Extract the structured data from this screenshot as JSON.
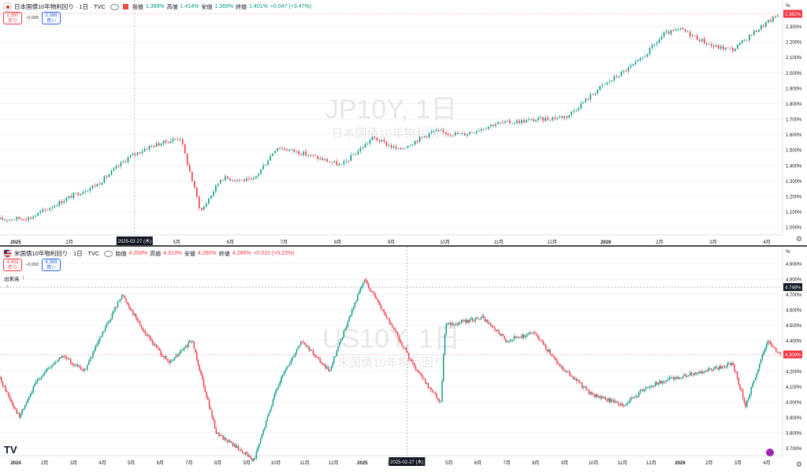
{
  "colors": {
    "up": "#089981",
    "down": "#f23645",
    "crosshair_bg": "#131722",
    "price_tag": "#f23645",
    "watermark": "#131722"
  },
  "top": {
    "symbol_title": "日本国債10年物利回り · 1日 · TVC",
    "ohlc": {
      "o_label": "始値",
      "o": "1.369%",
      "h_label": "高値",
      "h": "1.414%",
      "l_label": "安値",
      "l": "1.369%",
      "c_label": "終値",
      "c": "1.401%",
      "chg": "+0.047 (+3.47%)"
    },
    "sell_price": "2.397",
    "sell_label": "売り",
    "spread": "−0.009",
    "buy_price": "2.388",
    "buy_label": "買い",
    "watermark_title": "JP10Y, 1日",
    "watermark_sub": "日本国債10年物利回り",
    "unit": "%",
    "last_price": "2.382%",
    "crosshair_date": "2025-02-27 (木)",
    "y_ticks": [
      "2.300%",
      "2.200%",
      "2.100%",
      "2.000%",
      "1.900%",
      "1.800%",
      "1.700%",
      "1.600%",
      "1.500%",
      "1.400%",
      "1.300%",
      "1.200%",
      "1.100%",
      "1.000%"
    ],
    "x_ticks": [
      "2025",
      "2月",
      "4月",
      "5月",
      "6月",
      "7月",
      "8月",
      "9月",
      "10月",
      "11月",
      "12月",
      "2026",
      "2月",
      "3月",
      "4月"
    ]
  },
  "bottom": {
    "symbol_title": "米国債10年物利回り · 1日 · TVC",
    "ohlc": {
      "o_label": "始値",
      "o": "4.269%",
      "h_label": "高値",
      "h": "4.313%",
      "l_label": "安値",
      "l": "4.260%",
      "c_label": "終値",
      "c": "4.266%",
      "chg": "+0.010 (+0.23%)"
    },
    "sell_price": "4.401",
    "sell_label": "売り",
    "spread": "−0.002",
    "buy_price": "4.399",
    "buy_label": "買い",
    "volume_label": "出来高",
    "watermark_title": "US10Y, 1日",
    "watermark_sub": "米国債10年物利回り",
    "unit": "%",
    "last_price": "4.309%",
    "crosshair_price": "4.748%",
    "crosshair_date": "2025-02-27 (木)",
    "y_ticks": [
      "4.900%",
      "4.800%",
      "4.700%",
      "4.600%",
      "4.500%",
      "4.400%",
      "4.300%",
      "4.200%",
      "4.100%",
      "4.000%",
      "3.900%",
      "3.800%",
      "3.700%"
    ],
    "x_ticks": [
      "2024",
      "2月",
      "3月",
      "4月",
      "5月",
      "6月",
      "7月",
      "8月",
      "9月",
      "10月",
      "11月",
      "12月",
      "2025",
      "2月",
      "4月",
      "5月",
      "6月",
      "7月",
      "8月",
      "9月",
      "10月",
      "11月",
      "12月",
      "2026",
      "2月",
      "3月",
      "4月"
    ]
  },
  "chart_data": [
    {
      "type": "candlestick",
      "title": "JP10Y, 1日",
      "series_name": "日本国債10年物利回り",
      "ylim": [
        0.95,
        2.42
      ],
      "x_range": [
        "2024-12-01",
        "2026-04-10"
      ],
      "key_points": [
        {
          "date": "2024-12-01",
          "value": 1.05
        },
        {
          "date": "2024-12-20",
          "value": 1.06
        },
        {
          "date": "2025-01-15",
          "value": 1.2
        },
        {
          "date": "2025-02-01",
          "value": 1.28
        },
        {
          "date": "2025-02-20",
          "value": 1.45
        },
        {
          "date": "2025-03-05",
          "value": 1.52
        },
        {
          "date": "2025-03-25",
          "value": 1.58
        },
        {
          "date": "2025-04-07",
          "value": 1.1
        },
        {
          "date": "2025-04-20",
          "value": 1.32
        },
        {
          "date": "2025-05-10",
          "value": 1.3
        },
        {
          "date": "2025-05-25",
          "value": 1.52
        },
        {
          "date": "2025-06-10",
          "value": 1.48
        },
        {
          "date": "2025-07-05",
          "value": 1.4
        },
        {
          "date": "2025-07-25",
          "value": 1.58
        },
        {
          "date": "2025-08-10",
          "value": 1.5
        },
        {
          "date": "2025-09-01",
          "value": 1.62
        },
        {
          "date": "2025-09-20",
          "value": 1.6
        },
        {
          "date": "2025-10-10",
          "value": 1.67
        },
        {
          "date": "2025-11-10",
          "value": 1.7
        },
        {
          "date": "2025-11-25",
          "value": 1.72
        },
        {
          "date": "2025-12-15",
          "value": 1.9
        },
        {
          "date": "2026-01-10",
          "value": 2.08
        },
        {
          "date": "2026-01-25",
          "value": 2.25
        },
        {
          "date": "2026-02-05",
          "value": 2.28
        },
        {
          "date": "2026-02-25",
          "value": 2.17
        },
        {
          "date": "2026-03-10",
          "value": 2.15
        },
        {
          "date": "2026-03-25",
          "value": 2.28
        },
        {
          "date": "2026-04-08",
          "value": 2.38
        }
      ]
    },
    {
      "type": "candlestick",
      "title": "US10Y, 1日",
      "series_name": "米国債10年物利回り",
      "ylim": [
        3.65,
        4.98
      ],
      "x_range": [
        "2023-12-15",
        "2026-04-10"
      ],
      "key_points": [
        {
          "date": "2023-12-15",
          "value": 4.15
        },
        {
          "date": "2024-01-05",
          "value": 3.9
        },
        {
          "date": "2024-01-25",
          "value": 4.15
        },
        {
          "date": "2024-02-20",
          "value": 4.3
        },
        {
          "date": "2024-03-15",
          "value": 4.2
        },
        {
          "date": "2024-04-25",
          "value": 4.7
        },
        {
          "date": "2024-05-20",
          "value": 4.45
        },
        {
          "date": "2024-06-15",
          "value": 4.25
        },
        {
          "date": "2024-07-10",
          "value": 4.4
        },
        {
          "date": "2024-08-05",
          "value": 3.8
        },
        {
          "date": "2024-09-15",
          "value": 3.62
        },
        {
          "date": "2024-10-10",
          "value": 4.1
        },
        {
          "date": "2024-11-05",
          "value": 4.4
        },
        {
          "date": "2024-12-05",
          "value": 4.2
        },
        {
          "date": "2025-01-12",
          "value": 4.8
        },
        {
          "date": "2025-02-15",
          "value": 4.45
        },
        {
          "date": "2025-03-10",
          "value": 4.2
        },
        {
          "date": "2025-04-05",
          "value": 4.0
        },
        {
          "date": "2025-04-10",
          "value": 4.5
        },
        {
          "date": "2025-05-20",
          "value": 4.55
        },
        {
          "date": "2025-06-15",
          "value": 4.4
        },
        {
          "date": "2025-07-15",
          "value": 4.45
        },
        {
          "date": "2025-08-10",
          "value": 4.25
        },
        {
          "date": "2025-09-15",
          "value": 4.05
        },
        {
          "date": "2025-10-20",
          "value": 3.98
        },
        {
          "date": "2025-11-15",
          "value": 4.1
        },
        {
          "date": "2025-12-10",
          "value": 4.15
        },
        {
          "date": "2026-01-15",
          "value": 4.2
        },
        {
          "date": "2026-02-15",
          "value": 4.25
        },
        {
          "date": "2026-03-01",
          "value": 3.98
        },
        {
          "date": "2026-03-25",
          "value": 4.4
        },
        {
          "date": "2026-04-08",
          "value": 4.31
        }
      ]
    }
  ]
}
